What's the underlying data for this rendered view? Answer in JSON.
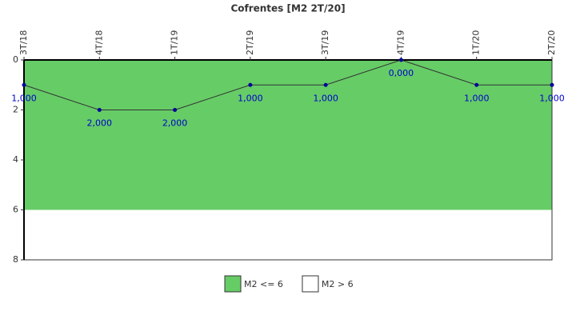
{
  "chart_data": {
    "type": "line",
    "title": "Cofrentes [M2 2T/20]",
    "categories": [
      "3T/18",
      "4T/18",
      "1T/19",
      "2T/19",
      "3T/19",
      "4T/19",
      "1T/20",
      "2T/20"
    ],
    "values": [
      1,
      2,
      2,
      1,
      1,
      0,
      1,
      1
    ],
    "value_labels": [
      "1,000",
      "2,000",
      "2,000",
      "1,000",
      "1,000",
      "0,000",
      "1,000",
      "1,000"
    ],
    "line_color": "#333333",
    "point_color": "#000099",
    "label_color": "#0000cc",
    "ylim": [
      0,
      8
    ],
    "yticks": [
      0,
      2,
      4,
      6,
      8
    ],
    "y_inverted": true,
    "bands": [
      {
        "name": "M2 <= 6",
        "color": "#66cc66",
        "from": 0,
        "to": 6
      },
      {
        "name": "M2 > 6",
        "color": "#ffffff",
        "from": 6,
        "to": 8
      }
    ]
  }
}
